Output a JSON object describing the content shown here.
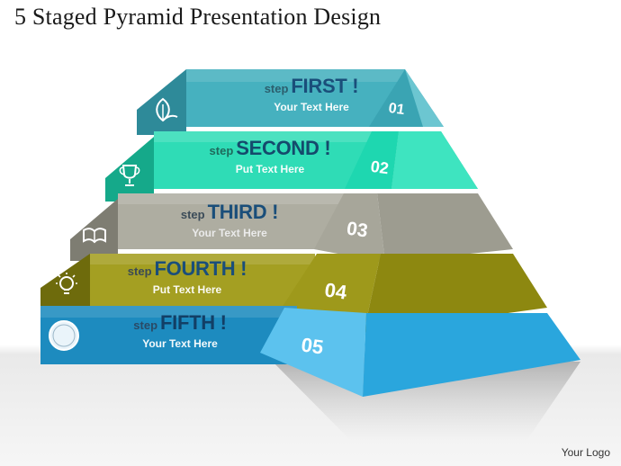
{
  "title": "5 Staged Pyramid Presentation Design",
  "logo_text": "Your Logo",
  "steps": [
    {
      "number": "01",
      "prefix": "step",
      "word": "FIRST !",
      "subtitle": "Your Text Here",
      "icon": "leaf-icon",
      "color": "#3aa4b3"
    },
    {
      "number": "02",
      "prefix": "step",
      "word": "SECOND !",
      "subtitle": "Put Text Here",
      "icon": "trophy-icon",
      "color": "#1ed7b0"
    },
    {
      "number": "03",
      "prefix": "step",
      "word": "THIRD !",
      "subtitle": "Your Text Here",
      "icon": "book-icon",
      "color": "#a09f92"
    },
    {
      "number": "04",
      "prefix": "step",
      "word": "FOURTH !",
      "subtitle": "Put Text Here",
      "icon": "lightbulb-icon",
      "color": "#9f9a1c"
    },
    {
      "number": "05",
      "prefix": "step",
      "word": "FIFTH !",
      "subtitle": "Your Text Here",
      "icon": "compass-icon",
      "color": "#2aa6dd"
    }
  ]
}
